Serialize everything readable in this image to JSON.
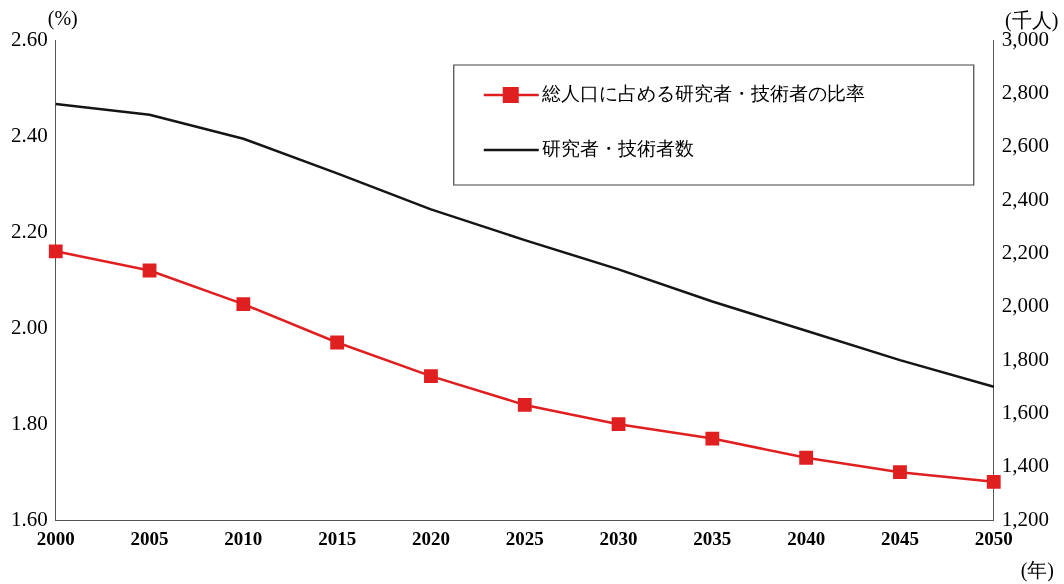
{
  "chart_data": {
    "type": "line",
    "categories": [
      "2000",
      "2005",
      "2010",
      "2015",
      "2020",
      "2025",
      "2030",
      "2035",
      "2040",
      "2045",
      "2050"
    ],
    "ylabel": "(%)",
    "y2label": "(千人)",
    "xlabel": "(年)",
    "series": [
      {
        "name": "総人口に占める研究者・技術者の比率",
        "color": "#e02020",
        "marker": "square",
        "values": [
          2.16,
          2.12,
          2.05,
          1.97,
          1.9,
          1.84,
          1.8,
          1.77,
          1.73,
          1.7,
          1.68
        ]
      },
      {
        "name": "研究者・技術者数",
        "color": "#151515",
        "axis": "y2",
        "marker": "none",
        "values": [
          2760,
          2720,
          2630,
          2500,
          2365,
          2250,
          2140,
          2020,
          1910,
          1800,
          1700
        ]
      }
    ],
    "ylim": [
      1.6,
      2.6
    ],
    "yticks": [
      {
        "value": 1.6,
        "label": "1.60"
      },
      {
        "value": 1.8,
        "label": "1.80"
      },
      {
        "value": 2.0,
        "label": "2.00"
      },
      {
        "value": 2.2,
        "label": "2.20"
      },
      {
        "value": 2.4,
        "label": "2.40"
      },
      {
        "value": 2.6,
        "label": "2.60"
      }
    ],
    "y2lim": [
      1200,
      3000
    ],
    "y2ticks": [
      {
        "value": 1200,
        "label": "1,200"
      },
      {
        "value": 1400,
        "label": "1,400"
      },
      {
        "value": 1600,
        "label": "1,600"
      },
      {
        "value": 1800,
        "label": "1,800"
      },
      {
        "value": 2000,
        "label": "2,000"
      },
      {
        "value": 2200,
        "label": "2,200"
      },
      {
        "value": 2400,
        "label": "2,400"
      },
      {
        "value": 2600,
        "label": "2,600"
      },
      {
        "value": 2800,
        "label": "2,800"
      },
      {
        "value": 3000,
        "label": "3,000"
      }
    ],
    "grid": false,
    "legend": "top right"
  }
}
